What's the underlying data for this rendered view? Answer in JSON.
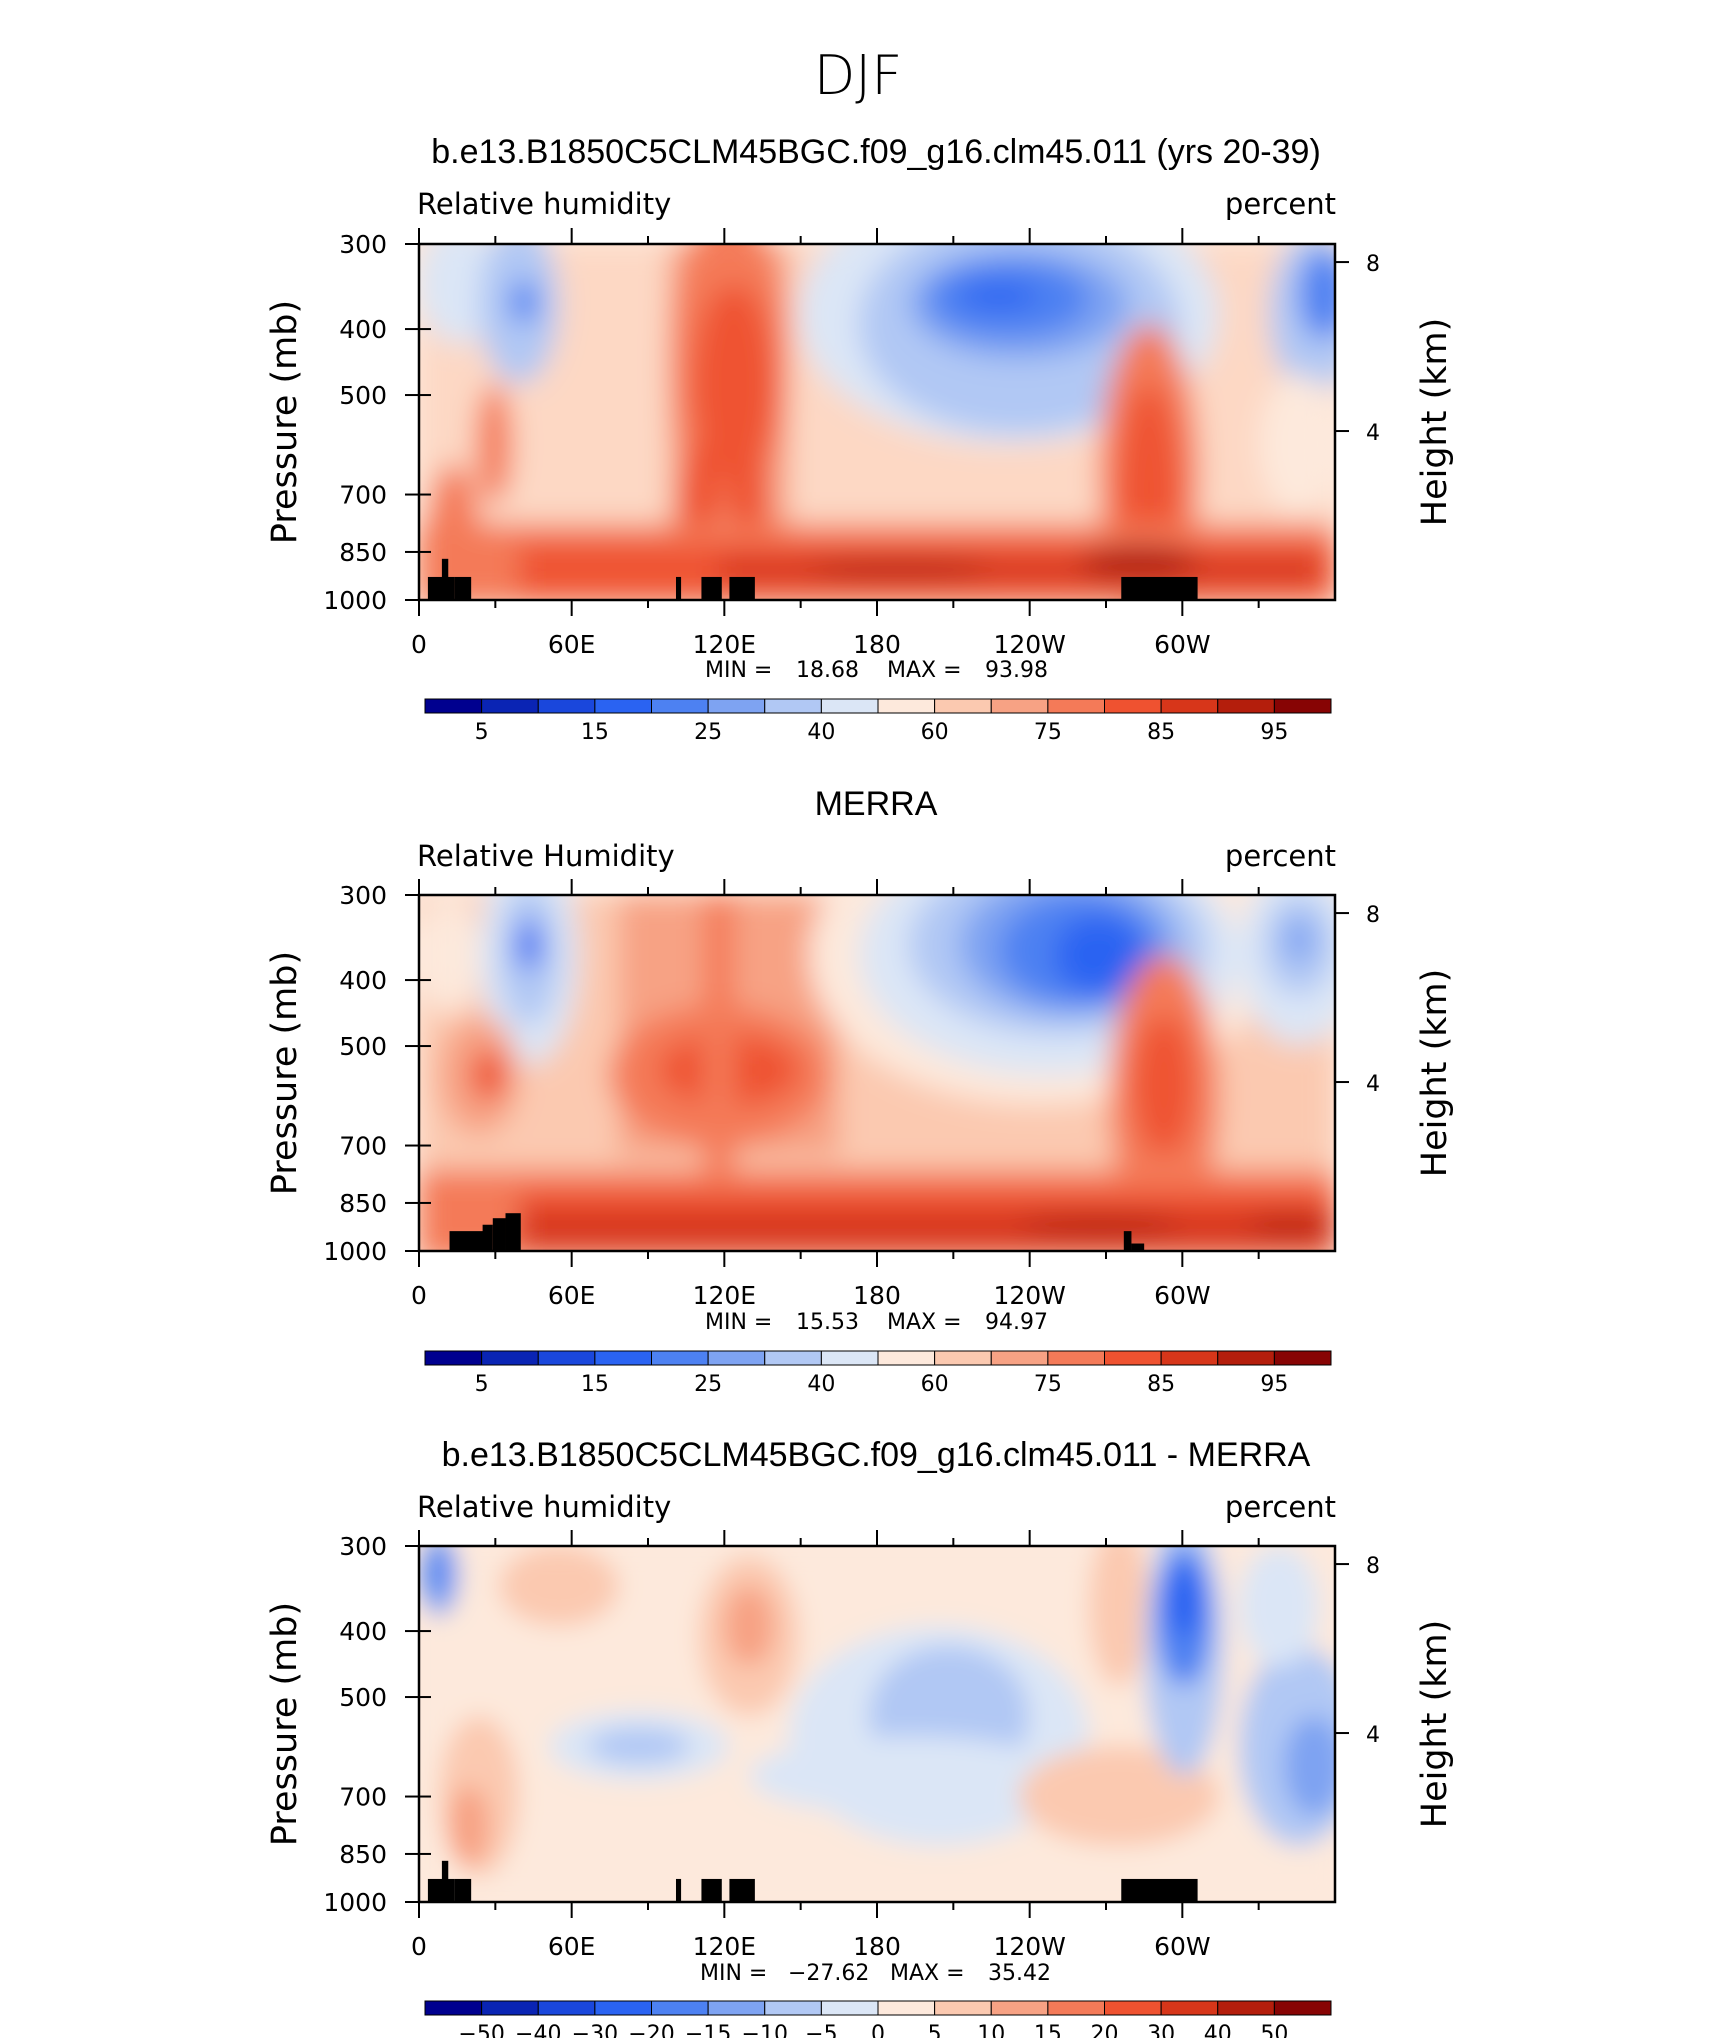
{
  "page_title": "DJF",
  "chart_data": [
    {
      "type": "contour",
      "title": "b.e13.B1850C5CLM45BGC.f09_g16.clm45.011 (yrs 20-39)",
      "variable_label": "Relative humidity",
      "units_label": "percent",
      "ylabel": "Pressure (mb)",
      "ylabel_right": "Height (km)",
      "y_ticks": [
        "300",
        "400",
        "500",
        "700",
        "850",
        "1000"
      ],
      "y_right_ticks": [
        "8",
        "4"
      ],
      "x_ticks": [
        "0",
        "60E",
        "120E",
        "180",
        "120W",
        "60W"
      ],
      "min_label": "MIN =",
      "min_value": "18.68",
      "max_label": "MAX =",
      "max_value": "93.98",
      "colorbar_labels": [
        "5",
        "15",
        "25",
        "40",
        "60",
        "75",
        "85",
        "95"
      ],
      "colorbar_colors": [
        "#00008f",
        "#0a24b4",
        "#1a47dc",
        "#2a63f2",
        "#4d81f2",
        "#7ea3f2",
        "#b1c8f4",
        "#dbe6f6",
        "#fde9dc",
        "#fbc9b0",
        "#f7a284",
        "#f47a58",
        "#ef5230",
        "#d7361a",
        "#b41e0c",
        "#870404"
      ],
      "black_boxes": [
        {
          "lon0": 3.5,
          "lon1": 14,
          "p_top": 925
        },
        {
          "lon0": 9,
          "lon1": 11.5,
          "p_top": 870
        },
        {
          "lon0": 14,
          "lon1": 20.5,
          "p_top": 925
        },
        {
          "lon0": 101,
          "lon1": 103,
          "p_top": 925
        },
        {
          "lon0": 111,
          "lon1": 119,
          "p_top": 925
        },
        {
          "lon0": 122,
          "lon1": 132,
          "p_top": 925
        },
        {
          "lon0": 276,
          "lon1": 306,
          "p_top": 925
        }
      ]
    },
    {
      "type": "contour",
      "title": "MERRA",
      "variable_label": "Relative Humidity",
      "units_label": "percent",
      "ylabel": "Pressure (mb)",
      "ylabel_right": "Height (km)",
      "y_ticks": [
        "300",
        "400",
        "500",
        "700",
        "850",
        "1000"
      ],
      "y_right_ticks": [
        "8",
        "4"
      ],
      "x_ticks": [
        "0",
        "60E",
        "120E",
        "180",
        "120W",
        "60W"
      ],
      "min_label": "MIN =",
      "min_value": "15.53",
      "max_label": "MAX =",
      "max_value": "94.97",
      "colorbar_labels": [
        "5",
        "15",
        "25",
        "40",
        "60",
        "75",
        "85",
        "95"
      ],
      "colorbar_colors": [
        "#00008f",
        "#0a24b4",
        "#1a47dc",
        "#2a63f2",
        "#4d81f2",
        "#7ea3f2",
        "#b1c8f4",
        "#dbe6f6",
        "#fde9dc",
        "#fbc9b0",
        "#f7a284",
        "#f47a58",
        "#ef5230",
        "#d7361a",
        "#b41e0c",
        "#870404"
      ],
      "black_boxes": [
        {
          "lon0": 12,
          "lon1": 26,
          "p_top": 935
        },
        {
          "lon0": 25,
          "lon1": 29,
          "p_top": 915
        },
        {
          "lon0": 29,
          "lon1": 34,
          "p_top": 895
        },
        {
          "lon0": 34,
          "lon1": 40,
          "p_top": 880
        },
        {
          "lon0": 277,
          "lon1": 280,
          "p_top": 935
        },
        {
          "lon0": 280,
          "lon1": 285,
          "p_top": 975
        }
      ]
    },
    {
      "type": "contour",
      "title": "b.e13.B1850C5CLM45BGC.f09_g16.clm45.011 - MERRA",
      "variable_label": "Relative humidity",
      "units_label": "percent",
      "ylabel": "Pressure (mb)",
      "ylabel_right": "Height (km)",
      "y_ticks": [
        "300",
        "400",
        "500",
        "700",
        "850",
        "1000"
      ],
      "y_right_ticks": [
        "8",
        "4"
      ],
      "x_ticks": [
        "0",
        "60E",
        "120E",
        "180",
        "120W",
        "60W"
      ],
      "min_label": "MIN =",
      "min_value": "−27.62",
      "max_label": "MAX =",
      "max_value": "35.42",
      "colorbar_labels": [
        "−50",
        "−40",
        "−30",
        "−20",
        "−15",
        "−10",
        "−5",
        "0",
        "5",
        "10",
        "15",
        "20",
        "30",
        "40",
        "50"
      ],
      "colorbar_colors": [
        "#00008f",
        "#0a24b4",
        "#1a47dc",
        "#2a63f2",
        "#4d81f2",
        "#7ea3f2",
        "#b1c8f4",
        "#dbe6f6",
        "#fde9dc",
        "#fbc9b0",
        "#f7a284",
        "#f47a58",
        "#ef5230",
        "#d7361a",
        "#b41e0c",
        "#870404"
      ],
      "black_boxes": [
        {
          "lon0": 3.5,
          "lon1": 14,
          "p_top": 925
        },
        {
          "lon0": 9,
          "lon1": 11.5,
          "p_top": 870
        },
        {
          "lon0": 14,
          "lon1": 20.5,
          "p_top": 925
        },
        {
          "lon0": 101,
          "lon1": 103,
          "p_top": 925
        },
        {
          "lon0": 111,
          "lon1": 119,
          "p_top": 925
        },
        {
          "lon0": 122,
          "lon1": 132,
          "p_top": 925
        },
        {
          "lon0": 276,
          "lon1": 306,
          "p_top": 925
        }
      ]
    }
  ]
}
